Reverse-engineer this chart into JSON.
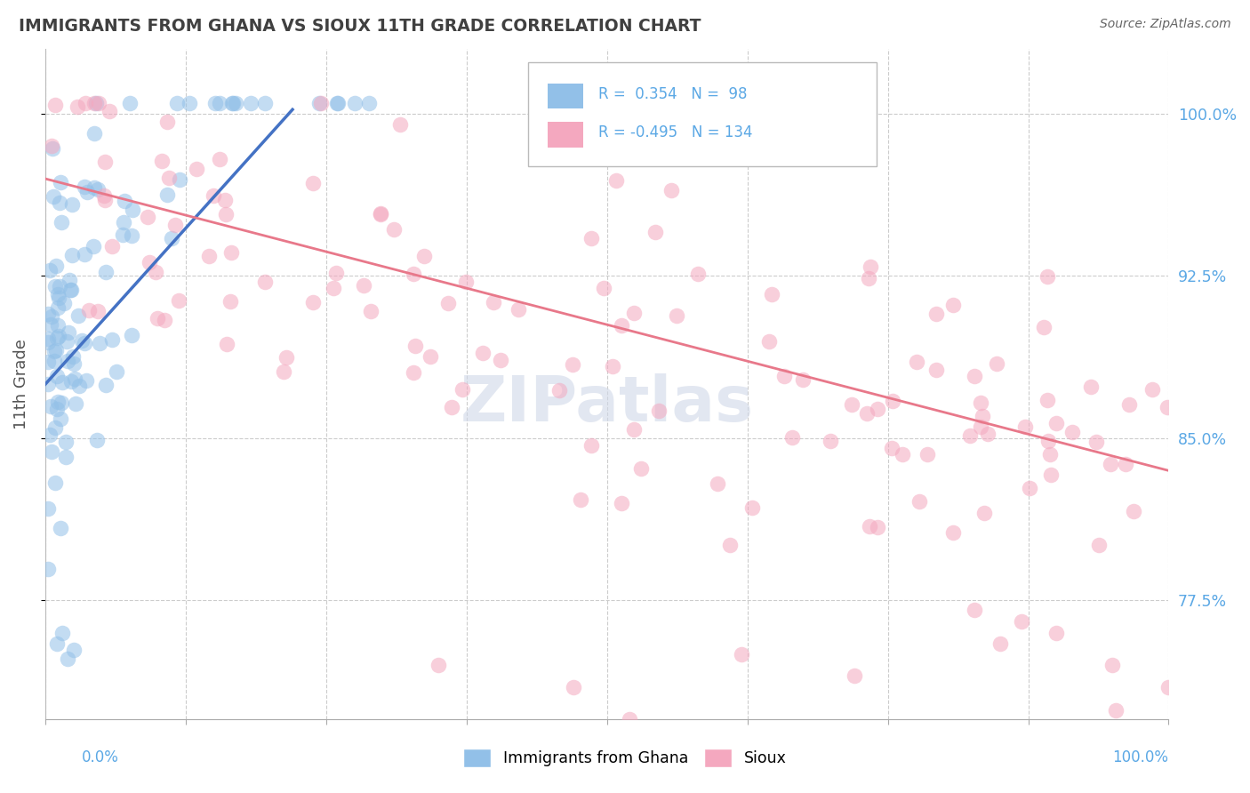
{
  "title": "IMMIGRANTS FROM GHANA VS SIOUX 11TH GRADE CORRELATION CHART",
  "source": "Source: ZipAtlas.com",
  "ylabel": "11th Grade",
  "yaxis_ticks": [
    0.775,
    0.85,
    0.925,
    1.0
  ],
  "yaxis_labels": [
    "77.5%",
    "85.0%",
    "92.5%",
    "100.0%"
  ],
  "xlim": [
    0.0,
    1.0
  ],
  "ylim": [
    0.72,
    1.03
  ],
  "legend_blue_r": "0.354",
  "legend_blue_n": "98",
  "legend_pink_r": "-0.495",
  "legend_pink_n": "134",
  "blue_color": "#92C0E8",
  "pink_color": "#F4A8BF",
  "blue_line_color": "#4472C4",
  "pink_line_color": "#E8788A",
  "background_color": "#FFFFFF",
  "grid_color": "#CCCCCC",
  "title_color": "#404040",
  "source_color": "#666666",
  "axis_label_color": "#5BA8E5",
  "legend_label_blue": "Immigrants from Ghana",
  "legend_label_pink": "Sioux",
  "watermark": "ZIPatlas",
  "xtick_color": "#888888"
}
